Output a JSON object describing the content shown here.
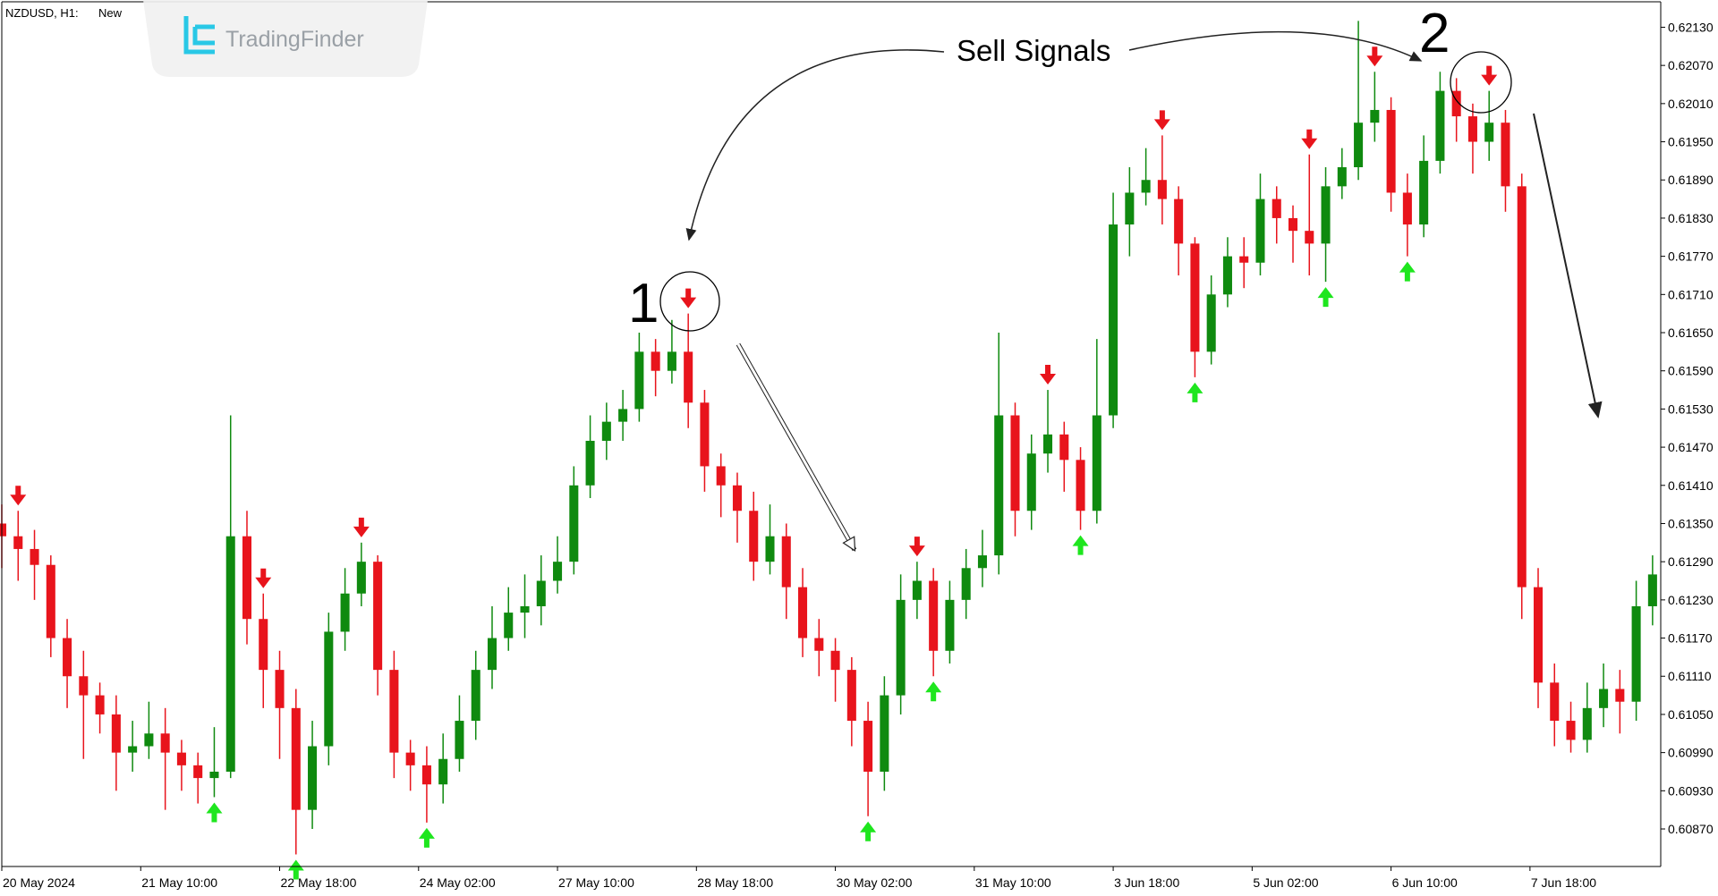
{
  "header": {
    "symbol": "NZDUSD, H1:",
    "label": "New"
  },
  "watermark": {
    "brand": "TradingFinder"
  },
  "annotations": {
    "callout": "Sell Signals",
    "first": "1",
    "second": "2"
  },
  "chart_data": {
    "type": "candlestick",
    "up_color": "#0f8a0f",
    "down_color": "#e8141c",
    "sell_color": "#e8141c",
    "buy_color": "#1ee61e",
    "xlim": [
      0,
      101.5
    ],
    "xticks": [
      {
        "value": 0,
        "label": "20 May 2024"
      },
      {
        "value": 8.5,
        "label": "21 May 10:00"
      },
      {
        "value": 17,
        "label": "22 May 18:00"
      },
      {
        "value": 25.5,
        "label": "24 May 02:00"
      },
      {
        "value": 34,
        "label": "27 May 10:00"
      },
      {
        "value": 42.5,
        "label": "28 May 18:00"
      },
      {
        "value": 51,
        "label": "30 May 02:00"
      },
      {
        "value": 59.5,
        "label": "31 May 10:00"
      },
      {
        "value": 68,
        "label": "3 Jun 18:00"
      },
      {
        "value": 76.5,
        "label": "5 Jun 02:00"
      },
      {
        "value": 85,
        "label": "6 Jun 10:00"
      },
      {
        "value": 93.5,
        "label": "7 Jun 18:00"
      }
    ],
    "ylim": [
      0.60811,
      0.6217
    ],
    "yticks": [
      {
        "value": 0.6213,
        "label": "0.62130"
      },
      {
        "value": 0.6207,
        "label": "0.62070"
      },
      {
        "value": 0.6201,
        "label": "0.62010"
      },
      {
        "value": 0.6195,
        "label": "0.61950"
      },
      {
        "value": 0.6189,
        "label": "0.61890"
      },
      {
        "value": 0.6183,
        "label": "0.61830"
      },
      {
        "value": 0.6177,
        "label": "0.61770"
      },
      {
        "value": 0.6171,
        "label": "0.61710"
      },
      {
        "value": 0.6165,
        "label": "0.61650"
      },
      {
        "value": 0.6159,
        "label": "0.61590"
      },
      {
        "value": 0.6153,
        "label": "0.61530"
      },
      {
        "value": 0.6147,
        "label": "0.61470"
      },
      {
        "value": 0.6141,
        "label": "0.61410"
      },
      {
        "value": 0.6135,
        "label": "0.61350"
      },
      {
        "value": 0.6129,
        "label": "0.61290"
      },
      {
        "value": 0.6123,
        "label": "0.61230"
      },
      {
        "value": 0.6117,
        "label": "0.61170"
      },
      {
        "value": 0.6111,
        "label": "0.61110"
      },
      {
        "value": 0.6105,
        "label": "0.61050"
      },
      {
        "value": 0.6099,
        "label": "0.60990"
      },
      {
        "value": 0.6093,
        "label": "0.60930"
      },
      {
        "value": 0.6087,
        "label": "0.60870"
      }
    ],
    "open": [
      0.6135,
      0.6133,
      0.6131,
      0.61285,
      0.6117,
      0.6111,
      0.6108,
      0.6105,
      0.6099,
      0.61,
      0.6102,
      0.6099,
      0.6097,
      0.6095,
      0.6096,
      0.6133,
      0.612,
      0.6112,
      0.6106,
      0.609,
      0.61,
      0.6118,
      0.6124,
      0.6129,
      0.6112,
      0.6099,
      0.6097,
      0.6094,
      0.6098,
      0.6104,
      0.6112,
      0.6117,
      0.6121,
      0.6122,
      0.6126,
      0.6129,
      0.6141,
      0.6148,
      0.6151,
      0.6153,
      0.6162,
      0.6159,
      0.6162,
      0.6154,
      0.6144,
      0.6141,
      0.6137,
      0.6129,
      0.6133,
      0.6125,
      0.6117,
      0.6115,
      0.6112,
      0.6104,
      0.6096,
      0.6108,
      0.6123,
      0.6126,
      0.6115,
      0.6123,
      0.6128,
      0.613,
      0.6152,
      0.6137,
      0.6146,
      0.6149,
      0.6145,
      0.6137,
      0.6152,
      0.6182,
      0.6187,
      0.6189,
      0.6186,
      0.6179,
      0.6162,
      0.6171,
      0.6177,
      0.6176,
      0.6186,
      0.6183,
      0.6181,
      0.6179,
      0.6188,
      0.6191,
      0.6198,
      0.62,
      0.6187,
      0.6182,
      0.6192,
      0.6203,
      0.6199,
      0.6195,
      0.6198,
      0.6188,
      0.6125,
      0.611,
      0.6104,
      0.6101,
      0.6106,
      0.6109,
      0.6107,
      0.6122
    ],
    "high": [
      0.6138,
      0.6137,
      0.6134,
      0.613,
      0.612,
      0.6115,
      0.611,
      0.6108,
      0.6104,
      0.6107,
      0.6106,
      0.6101,
      0.6099,
      0.6103,
      0.6152,
      0.6137,
      0.6124,
      0.6115,
      0.6109,
      0.6104,
      0.6121,
      0.6128,
      0.6132,
      0.613,
      0.6115,
      0.6101,
      0.61,
      0.6102,
      0.6108,
      0.6115,
      0.6122,
      0.6125,
      0.6127,
      0.613,
      0.6133,
      0.6144,
      0.6152,
      0.6154,
      0.6156,
      0.6165,
      0.6164,
      0.6167,
      0.6168,
      0.6156,
      0.6146,
      0.6143,
      0.614,
      0.6138,
      0.6135,
      0.6128,
      0.612,
      0.6117,
      0.6114,
      0.6107,
      0.6111,
      0.6127,
      0.6129,
      0.6128,
      0.6126,
      0.6131,
      0.6134,
      0.6165,
      0.6154,
      0.6149,
      0.6156,
      0.6151,
      0.6147,
      0.6164,
      0.6187,
      0.6191,
      0.6194,
      0.6196,
      0.6188,
      0.618,
      0.6174,
      0.618,
      0.618,
      0.619,
      0.6188,
      0.6185,
      0.6193,
      0.6191,
      0.6194,
      0.6214,
      0.6206,
      0.6202,
      0.619,
      0.6196,
      0.6206,
      0.6205,
      0.6201,
      0.6203,
      0.62,
      0.619,
      0.6128,
      0.6113,
      0.6107,
      0.611,
      0.6113,
      0.6112,
      0.6126,
      0.613
    ],
    "low": [
      0.6128,
      0.6126,
      0.6123,
      0.6114,
      0.6106,
      0.6098,
      0.6102,
      0.6093,
      0.6096,
      0.6098,
      0.609,
      0.6093,
      0.6091,
      0.6092,
      0.6095,
      0.6116,
      0.6106,
      0.6098,
      0.6083,
      0.6087,
      0.6097,
      0.6115,
      0.6122,
      0.6108,
      0.6095,
      0.6093,
      0.6088,
      0.6091,
      0.6096,
      0.6101,
      0.6109,
      0.6115,
      0.6117,
      0.6119,
      0.6124,
      0.6127,
      0.6139,
      0.6145,
      0.6148,
      0.6151,
      0.6155,
      0.6157,
      0.615,
      0.614,
      0.6136,
      0.6132,
      0.6126,
      0.6127,
      0.612,
      0.6114,
      0.6111,
      0.6107,
      0.61,
      0.6089,
      0.6093,
      0.6105,
      0.612,
      0.6111,
      0.6113,
      0.612,
      0.6125,
      0.6127,
      0.6133,
      0.6134,
      0.6143,
      0.614,
      0.6134,
      0.6135,
      0.615,
      0.6177,
      0.6185,
      0.6182,
      0.6174,
      0.6158,
      0.616,
      0.6169,
      0.6172,
      0.6174,
      0.6179,
      0.6176,
      0.6174,
      0.6173,
      0.6186,
      0.6189,
      0.6195,
      0.6184,
      0.6177,
      0.618,
      0.619,
      0.6195,
      0.619,
      0.6192,
      0.6184,
      0.612,
      0.6106,
      0.61,
      0.6099,
      0.6099,
      0.6103,
      0.6102,
      0.6104,
      0.6119
    ],
    "close": [
      0.6133,
      0.6131,
      0.61285,
      0.6117,
      0.6111,
      0.6108,
      0.6105,
      0.6099,
      0.61,
      0.6102,
      0.6099,
      0.6097,
      0.6095,
      0.6096,
      0.6133,
      0.612,
      0.6112,
      0.6106,
      0.609,
      0.61,
      0.6118,
      0.6124,
      0.6129,
      0.6112,
      0.6099,
      0.6097,
      0.6094,
      0.6098,
      0.6104,
      0.6112,
      0.6117,
      0.6121,
      0.6122,
      0.6126,
      0.6129,
      0.6141,
      0.6148,
      0.6151,
      0.6153,
      0.6162,
      0.6159,
      0.6162,
      0.6154,
      0.6144,
      0.6141,
      0.6137,
      0.6129,
      0.6133,
      0.6125,
      0.6117,
      0.6115,
      0.6112,
      0.6104,
      0.6096,
      0.6108,
      0.6123,
      0.6126,
      0.6115,
      0.6123,
      0.6128,
      0.613,
      0.6152,
      0.6137,
      0.6146,
      0.6149,
      0.6145,
      0.6137,
      0.6152,
      0.6182,
      0.6187,
      0.6189,
      0.6186,
      0.6179,
      0.6162,
      0.6171,
      0.6177,
      0.6176,
      0.6186,
      0.6183,
      0.6181,
      0.6179,
      0.6188,
      0.6191,
      0.6198,
      0.62,
      0.6187,
      0.6182,
      0.6192,
      0.6203,
      0.6199,
      0.6195,
      0.6198,
      0.6188,
      0.6125,
      0.611,
      0.6104,
      0.6101,
      0.6106,
      0.6109,
      0.6107,
      0.6122,
      0.6127
    ],
    "sell_signals": [
      1,
      16,
      22,
      42,
      56,
      64,
      71,
      80,
      84,
      91
    ],
    "buy_signals": [
      13,
      18,
      26,
      53,
      57,
      66,
      73,
      81,
      86
    ]
  }
}
